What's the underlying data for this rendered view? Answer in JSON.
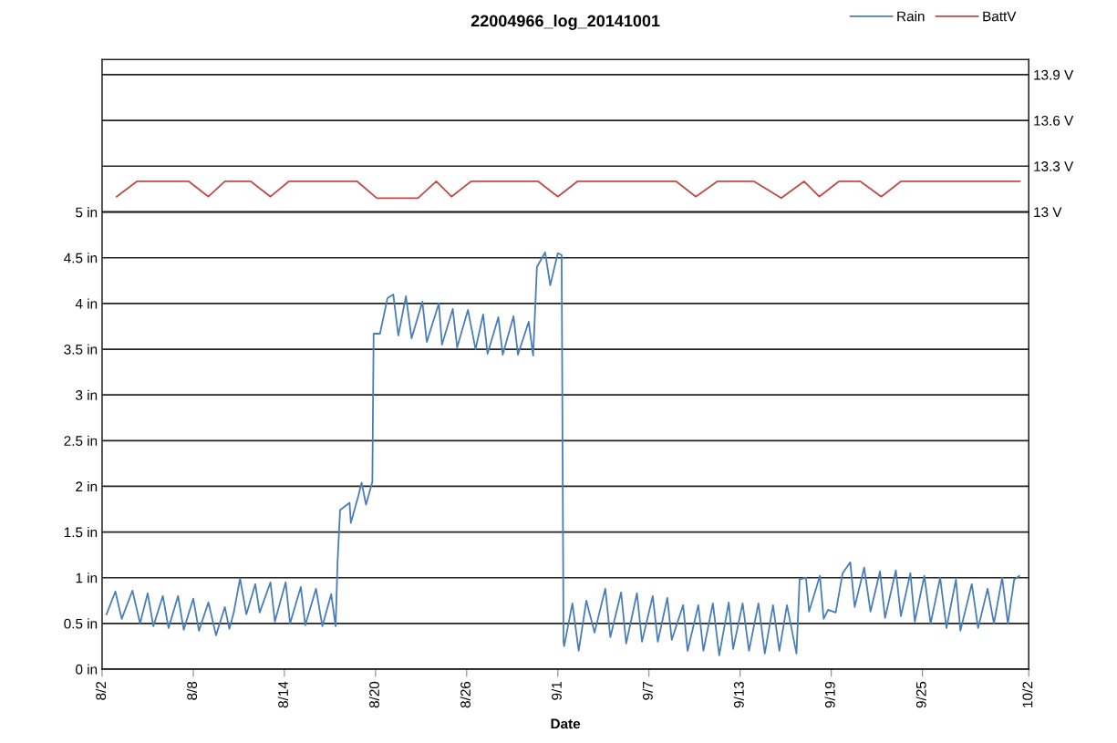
{
  "chart_data": {
    "type": "line",
    "title": "22004966_log_20141001",
    "xlabel": "Date",
    "xlim": [
      "2014-08-02",
      "2014-10-02"
    ],
    "xticks": [
      {
        "value": "2014-08-02",
        "label": "8/2"
      },
      {
        "value": "2014-08-08",
        "label": "8/8"
      },
      {
        "value": "2014-08-14",
        "label": "8/14"
      },
      {
        "value": "2014-08-20",
        "label": "8/20"
      },
      {
        "value": "2014-08-26",
        "label": "8/26"
      },
      {
        "value": "2014-09-01",
        "label": "9/1"
      },
      {
        "value": "2014-09-07",
        "label": "9/7"
      },
      {
        "value": "2014-09-13",
        "label": "9/13"
      },
      {
        "value": "2014-09-19",
        "label": "9/19"
      },
      {
        "value": "2014-09-25",
        "label": "9/25"
      },
      {
        "value": "2014-10-02",
        "label": "10/2"
      }
    ],
    "ylim": [
      0,
      6.67
    ],
    "yticks": [
      {
        "value": 0,
        "label": "0 in"
      },
      {
        "value": 0.5,
        "label": "0.5 in"
      },
      {
        "value": 1,
        "label": "1 in"
      },
      {
        "value": 1.5,
        "label": "1.5 in"
      },
      {
        "value": 2,
        "label": "2 in"
      },
      {
        "value": 2.5,
        "label": "2.5 in"
      },
      {
        "value": 3,
        "label": "3 in"
      },
      {
        "value": 3.5,
        "label": "3.5 in"
      },
      {
        "value": 4,
        "label": "4 in"
      },
      {
        "value": 4.5,
        "label": "4.5 in"
      },
      {
        "value": 5,
        "label": "5 in"
      }
    ],
    "y2lim": [
      10,
      14
    ],
    "y2ticks": [
      {
        "value": 13,
        "label": "13 V"
      },
      {
        "value": 13.3,
        "label": "13.3 V"
      },
      {
        "value": 13.6,
        "label": "13.6 V"
      },
      {
        "value": 13.9,
        "label": "13.9 V"
      }
    ],
    "grid": "y",
    "legend": "top right",
    "line_style": "solid",
    "series": [
      {
        "name": "Rain",
        "color": "#4a7ebb",
        "x": [
          "2014-08-02T07:00",
          "2014-08-02T21:00",
          "2014-08-03T07:00",
          "2014-08-04T00:00",
          "2014-08-04T12:00",
          "2014-08-05T00:00",
          "2014-08-05T09:00",
          "2014-08-06T00:00",
          "2014-08-06T09:00",
          "2014-08-07T00:00",
          "2014-08-07T09:00",
          "2014-08-08T00:00",
          "2014-08-08T09:00",
          "2014-08-09T00:00",
          "2014-08-09T12:00",
          "2014-08-10T02:00",
          "2014-08-10T09:00",
          "2014-08-10T16:00",
          "2014-08-11T02:00",
          "2014-08-11T12:00",
          "2014-08-12T02:00",
          "2014-08-12T09:00",
          "2014-08-13T02:00",
          "2014-08-13T09:00",
          "2014-08-14T02:00",
          "2014-08-14T09:00",
          "2014-08-15T02:00",
          "2014-08-15T09:00",
          "2014-08-16T02:00",
          "2014-08-16T12:00",
          "2014-08-17T02:00",
          "2014-08-17T09:00",
          "2014-08-17T12:00",
          "2014-08-17T16:00",
          "2014-08-18T07:00",
          "2014-08-18T09:00",
          "2014-08-18T21:00",
          "2014-08-19T02:00",
          "2014-08-19T09:00",
          "2014-08-19T19:00",
          "2014-08-19T21:00",
          "2014-08-20T07:00",
          "2014-08-20T19:00",
          "2014-08-21T04:00",
          "2014-08-21T12:00",
          "2014-08-22T00:00",
          "2014-08-22T09:00",
          "2014-08-23T02:00",
          "2014-08-23T09:00",
          "2014-08-24T04:00",
          "2014-08-24T09:00",
          "2014-08-25T02:00",
          "2014-08-25T09:00",
          "2014-08-26T02:00",
          "2014-08-26T14:00",
          "2014-08-27T02:00",
          "2014-08-27T09:00",
          "2014-08-28T02:00",
          "2014-08-28T09:00",
          "2014-08-29T02:00",
          "2014-08-29T09:00",
          "2014-08-30T02:00",
          "2014-08-30T09:00",
          "2014-08-30T15:00",
          "2014-08-31T04:00",
          "2014-08-31T12:00",
          "2014-09-01T00:00",
          "2014-09-01T06:00",
          "2014-09-01T09:00",
          "2014-09-01T10:00",
          "2014-09-01T23:00",
          "2014-09-02T09:00",
          "2014-09-02T21:00",
          "2014-09-03T10:00",
          "2014-09-04T03:00",
          "2014-09-04T11:00",
          "2014-09-05T04:00",
          "2014-09-05T12:00",
          "2014-09-06T05:00",
          "2014-09-06T13:00",
          "2014-09-07T06:00",
          "2014-09-07T14:00",
          "2014-09-08T05:00",
          "2014-09-08T12:00",
          "2014-09-09T06:00",
          "2014-09-09T13:00",
          "2014-09-10T06:00",
          "2014-09-10T14:00",
          "2014-09-11T05:00",
          "2014-09-11T15:00",
          "2014-09-12T06:00",
          "2014-09-12T13:00",
          "2014-09-13T04:00",
          "2014-09-13T14:00",
          "2014-09-14T05:00",
          "2014-09-14T15:00",
          "2014-09-15T04:00",
          "2014-09-15T14:00",
          "2014-09-16T02:00",
          "2014-09-16T17:00",
          "2014-09-16T22:00",
          "2014-09-17T08:00",
          "2014-09-17T13:00",
          "2014-09-18T06:00",
          "2014-09-18T12:00",
          "2014-09-18T19:00",
          "2014-09-19T07:00",
          "2014-09-19T18:00",
          "2014-09-20T06:00",
          "2014-09-20T13:00",
          "2014-09-21T04:00",
          "2014-09-21T14:00",
          "2014-09-22T05:00",
          "2014-09-22T13:00",
          "2014-09-23T06:00",
          "2014-09-23T14:00",
          "2014-09-24T05:00",
          "2014-09-24T12:00",
          "2014-09-25T03:00",
          "2014-09-25T13:00",
          "2014-09-26T04:00",
          "2014-09-26T14:00",
          "2014-09-27T05:00",
          "2014-09-27T12:00",
          "2014-09-28T06:00",
          "2014-09-28T16:00",
          "2014-09-29T07:00",
          "2014-09-29T17:00",
          "2014-09-30T06:00",
          "2014-09-30T15:00",
          "2014-10-01T01:00",
          "2014-10-01T09:00"
        ],
        "values": [
          0.6,
          0.85,
          0.55,
          0.86,
          0.5,
          0.83,
          0.47,
          0.8,
          0.45,
          0.8,
          0.43,
          0.77,
          0.42,
          0.73,
          0.37,
          0.68,
          0.44,
          0.62,
          0.99,
          0.6,
          0.93,
          0.62,
          0.95,
          0.52,
          0.95,
          0.5,
          0.9,
          0.48,
          0.88,
          0.47,
          0.82,
          0.47,
          1.17,
          1.74,
          1.82,
          1.6,
          1.9,
          2.04,
          1.8,
          2.05,
          3.67,
          3.67,
          4.06,
          4.1,
          3.65,
          4.08,
          3.62,
          4.02,
          3.58,
          4.0,
          3.55,
          3.94,
          3.52,
          3.93,
          3.5,
          3.88,
          3.45,
          3.85,
          3.44,
          3.86,
          3.44,
          3.8,
          3.43,
          4.4,
          4.56,
          4.2,
          4.55,
          4.53,
          0.3,
          0.25,
          0.72,
          0.2,
          0.75,
          0.4,
          0.88,
          0.35,
          0.84,
          0.28,
          0.83,
          0.3,
          0.8,
          0.3,
          0.78,
          0.32,
          0.7,
          0.2,
          0.7,
          0.2,
          0.72,
          0.15,
          0.73,
          0.22,
          0.72,
          0.2,
          0.72,
          0.17,
          0.7,
          0.2,
          0.7,
          0.17,
          0.98,
          1.0,
          0.63,
          1.02,
          0.55,
          0.65,
          0.62,
          1.05,
          1.17,
          0.68,
          1.11,
          0.63,
          1.07,
          0.56,
          1.08,
          0.58,
          1.05,
          0.52,
          1.02,
          0.5,
          1.0,
          0.45,
          0.98,
          0.42,
          0.93,
          0.45,
          0.88,
          0.5,
          1.0,
          0.5,
          0.98,
          1.02
        ]
      },
      {
        "name": "BattV",
        "color": "#be4b48",
        "axis": "y2",
        "x": [
          "2014-08-02T23:00",
          "2014-08-04T07:00",
          "2014-08-07T17:00",
          "2014-08-09T00:00",
          "2014-08-10T02:00",
          "2014-08-11T19:00",
          "2014-08-13T02:00",
          "2014-08-14T07:00",
          "2014-08-18T19:00",
          "2014-08-20T02:00",
          "2014-08-22T19:00",
          "2014-08-24T00:00",
          "2014-08-25T00:00",
          "2014-08-26T07:00",
          "2014-08-30T17:00",
          "2014-09-01T00:00",
          "2014-09-02T07:00",
          "2014-09-08T19:00",
          "2014-09-10T02:00",
          "2014-09-11T12:00",
          "2014-09-13T22:00",
          "2014-09-15T17:00",
          "2014-09-17T05:00",
          "2014-09-18T05:00",
          "2014-09-19T12:00",
          "2014-09-20T22:00",
          "2014-09-22T07:00",
          "2014-09-23T14:00",
          "2014-10-01T10:00"
        ],
        "values": [
          13.1,
          13.2,
          13.2,
          13.1,
          13.2,
          13.2,
          13.1,
          13.2,
          13.2,
          13.09,
          13.09,
          13.2,
          13.1,
          13.2,
          13.2,
          13.1,
          13.2,
          13.2,
          13.1,
          13.2,
          13.2,
          13.09,
          13.2,
          13.1,
          13.2,
          13.2,
          13.1,
          13.2,
          13.2
        ]
      }
    ]
  }
}
